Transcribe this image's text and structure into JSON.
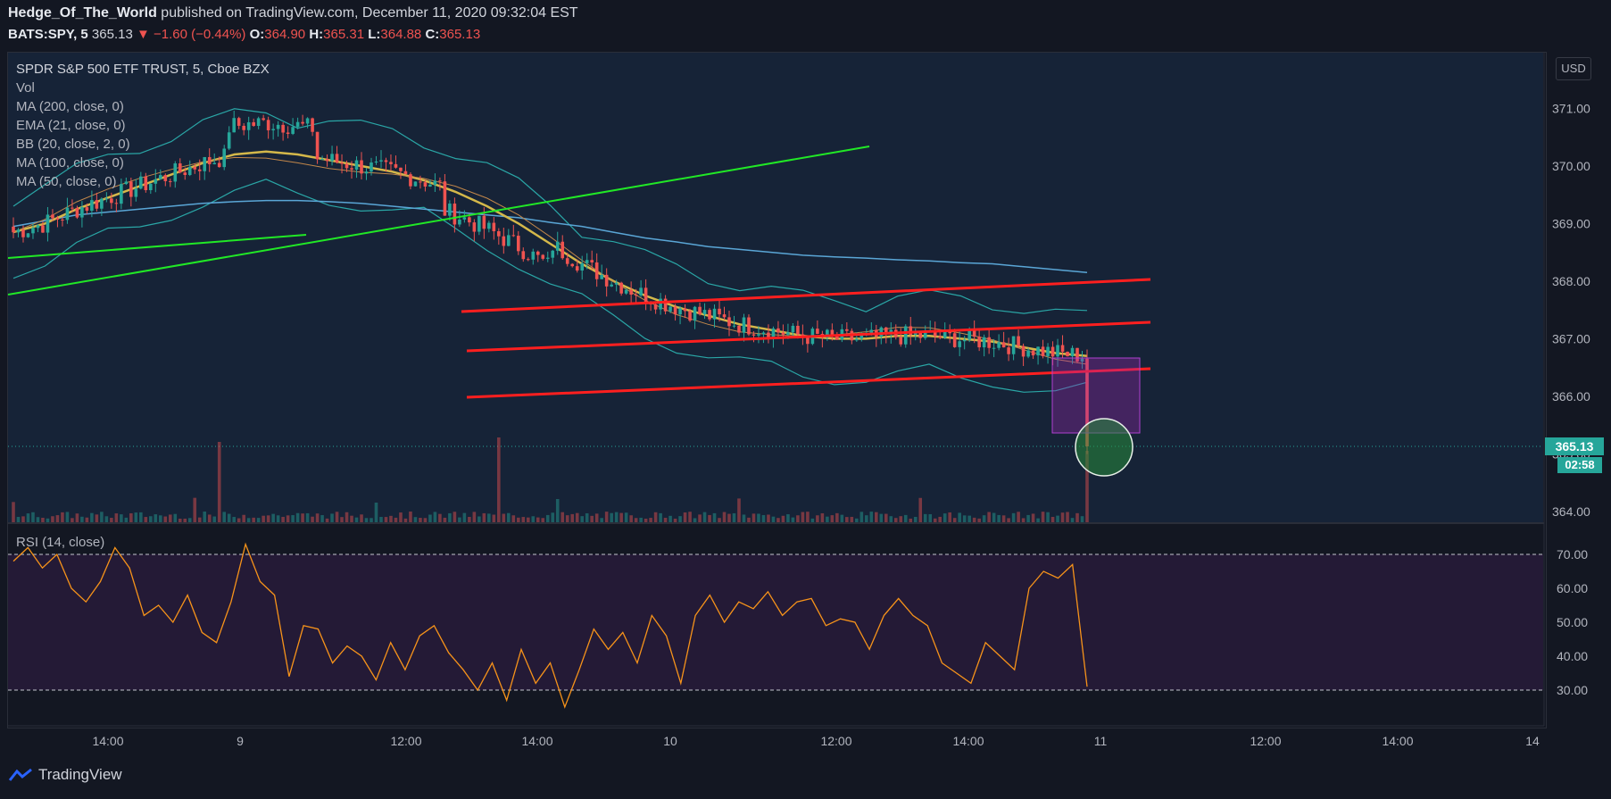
{
  "header": {
    "author": "Hedge_Of_The_World",
    "published": "published on TradingView.com, December 11, 2020 09:32:04 EST",
    "symbol": "BATS:SPY, 5",
    "last": "365.13",
    "change_arrow": "▼",
    "change": "−1.60 (−0.44%)",
    "o_label": "O:",
    "o": "364.90",
    "h_label": "H:",
    "h": "365.31",
    "l_label": "L:",
    "l": "364.88",
    "c_label": "C:",
    "c": "365.13"
  },
  "legend": {
    "title": "SPDR S&P 500 ETF TRUST, 5, Cboe BZX",
    "items": [
      "Vol",
      "MA (200, close, 0)",
      "EMA (21, close, 0)",
      "BB (20, close, 2, 0)",
      "MA (100, close, 0)",
      "MA (50, close, 0)"
    ]
  },
  "rsi_label": "RSI (14, close)",
  "currency_button": "USD",
  "price_tag": "365.13",
  "countdown": "02:58",
  "footer_brand": "TradingView",
  "colors": {
    "background": "#131722",
    "price_pane": "#162337",
    "rsi_band": "#2a1f3d",
    "up": "#26a69a",
    "down": "#ef5350",
    "rsi_line": "#f7931a",
    "channel": "#ff1f1f",
    "trendline": "#21e826",
    "ma50": "#d4b84a",
    "ma200": "#5aa6d6",
    "bb": "#2aa6a6",
    "box": "#9c27b0",
    "circle": "#1b7a40"
  },
  "chart_data": [
    {
      "type": "candlestick",
      "title": "SPDR S&P 500 ETF TRUST, 5, Cboe BZX",
      "y_ticks": [
        364.0,
        365.0,
        366.0,
        367.0,
        368.0,
        369.0,
        370.0,
        371.0
      ],
      "ylim": [
        363.6,
        371.9
      ],
      "x_ticks": [
        "14:00",
        "9",
        "12:00",
        "14:00",
        "10",
        "12:00",
        "14:00",
        "11",
        "12:00",
        "14:00",
        "14"
      ],
      "last_price": 365.13,
      "series": [
        {
          "name": "MA (50, close, 0)",
          "values": [
            368.85,
            369.0,
            369.25,
            369.45,
            369.65,
            369.85,
            370.05,
            370.2,
            370.25,
            370.2,
            370.1,
            370.0,
            369.9,
            369.75,
            369.55,
            369.3,
            369.0,
            368.65,
            368.3,
            368.0,
            367.75,
            367.55,
            367.4,
            367.25,
            367.15,
            367.05,
            367.0,
            367.0,
            367.05,
            367.05,
            367.0,
            366.95,
            366.85,
            366.75,
            366.7
          ]
        },
        {
          "name": "MA (200, close, 0)",
          "values": [
            368.95,
            369.05,
            369.15,
            369.2,
            369.25,
            369.3,
            369.35,
            369.38,
            369.4,
            369.4,
            369.38,
            369.35,
            369.3,
            369.25,
            369.2,
            369.15,
            369.1,
            369.02,
            368.95,
            368.85,
            368.75,
            368.68,
            368.6,
            368.55,
            368.5,
            368.45,
            368.42,
            368.4,
            368.37,
            368.35,
            368.32,
            368.3,
            368.25,
            368.2,
            368.15
          ]
        }
      ]
    },
    {
      "type": "line",
      "title": "RSI (14, close)",
      "y_ticks": [
        30.0,
        40.0,
        50.0,
        60.0,
        70.0
      ],
      "ylim": [
        24,
        74
      ],
      "overbought": 70,
      "oversold": 30,
      "series": [
        {
          "name": "RSI",
          "values": [
            68,
            72,
            66,
            70,
            60,
            56,
            62,
            72,
            66,
            52,
            55,
            50,
            58,
            47,
            44,
            56,
            73,
            62,
            58,
            34,
            49,
            48,
            38,
            43,
            40,
            33,
            44,
            36,
            46,
            49,
            41,
            36,
            30,
            38,
            27,
            42,
            32,
            38,
            25,
            36,
            48,
            42,
            47,
            38,
            52,
            46,
            32,
            52,
            58,
            50,
            56,
            54,
            59,
            52,
            56,
            57,
            49,
            51,
            50,
            42,
            52,
            57,
            52,
            49,
            38,
            35,
            32,
            44,
            40,
            36,
            60,
            65,
            63,
            67,
            31
          ]
        }
      ]
    }
  ]
}
